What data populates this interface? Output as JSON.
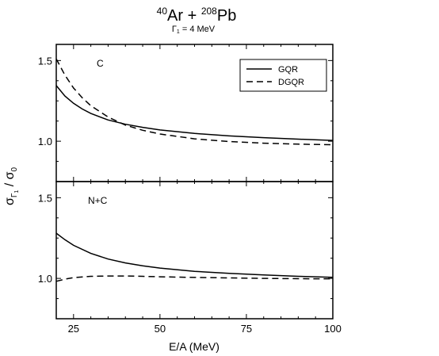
{
  "title": {
    "proj_mass": "40",
    "proj": "Ar",
    "plus": " + ",
    "targ_mass": "208",
    "targ": "Pb",
    "sub_gamma": "Γ",
    "sub_index": "1",
    "sub_rest": " = 4 MeV"
  },
  "axes": {
    "xlabel": "E/A (MeV)",
    "ylabel": {
      "sigma1": "σ",
      "gamma": "Γ",
      "gamma_index": "1",
      "slash": " / ",
      "sigma0": "σ",
      "zero": "0"
    }
  },
  "chart_data": [
    {
      "type": "line",
      "panel_label": "C",
      "xlim": [
        20,
        100
      ],
      "ylim": [
        0.75,
        1.6
      ],
      "x_ticks": [
        25,
        50,
        75,
        100
      ],
      "y_ticks": [
        1.0,
        1.5
      ],
      "y_tick_labels": [
        "1.0",
        "1.5"
      ],
      "legend": {
        "position": "top-right",
        "entries": [
          "GQR",
          "DGQR"
        ]
      },
      "series": [
        {
          "name": "GQR",
          "style": "solid",
          "x": [
            20,
            22.5,
            25,
            27.5,
            30,
            35,
            40,
            45,
            50,
            60,
            70,
            80,
            90,
            100
          ],
          "y": [
            1.345,
            1.28,
            1.235,
            1.2,
            1.172,
            1.132,
            1.105,
            1.086,
            1.07,
            1.048,
            1.033,
            1.022,
            1.013,
            1.005
          ]
        },
        {
          "name": "DGQR",
          "style": "dashed",
          "x": [
            20,
            22.5,
            25,
            27.5,
            30,
            35,
            40,
            45,
            50,
            60,
            70,
            80,
            90,
            100
          ],
          "y": [
            1.51,
            1.41,
            1.33,
            1.27,
            1.22,
            1.15,
            1.1,
            1.068,
            1.045,
            1.015,
            0.998,
            0.988,
            0.982,
            0.978
          ]
        }
      ]
    },
    {
      "type": "line",
      "panel_label": "N+C",
      "xlim": [
        20,
        100
      ],
      "ylim": [
        0.75,
        1.6
      ],
      "x_ticks": [
        25,
        50,
        75,
        100
      ],
      "x_tick_labels": [
        "25",
        "50",
        "75",
        "100"
      ],
      "y_ticks": [
        1.0,
        1.5
      ],
      "y_tick_labels": [
        "1.0",
        "1.5"
      ],
      "series": [
        {
          "name": "GQR",
          "style": "solid",
          "x": [
            20,
            22.5,
            25,
            30,
            35,
            40,
            45,
            50,
            60,
            70,
            80,
            90,
            100
          ],
          "y": [
            1.28,
            1.24,
            1.205,
            1.155,
            1.12,
            1.096,
            1.078,
            1.064,
            1.044,
            1.031,
            1.021,
            1.013,
            1.007
          ]
        },
        {
          "name": "DGQR",
          "style": "dashed",
          "x": [
            20,
            22.5,
            25,
            30,
            35,
            40,
            45,
            50,
            60,
            70,
            80,
            90,
            100
          ],
          "y": [
            0.982,
            0.995,
            1.005,
            1.013,
            1.015,
            1.015,
            1.013,
            1.01,
            1.006,
            1.003,
            1.0,
            0.998,
            0.997
          ]
        }
      ]
    }
  ]
}
